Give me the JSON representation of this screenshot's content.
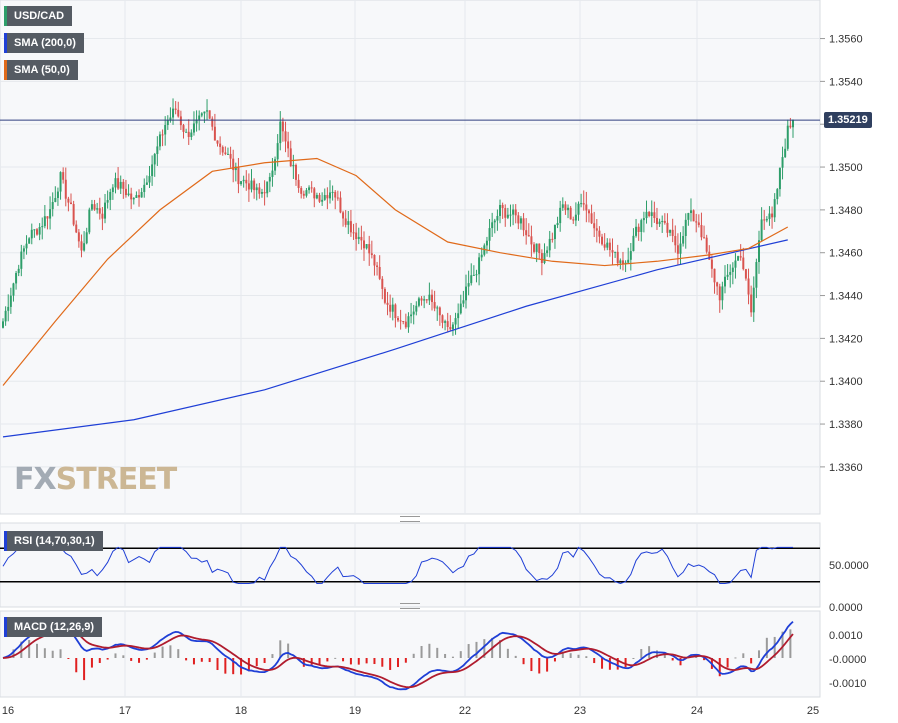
{
  "chart_data": [
    {
      "type": "candlestick",
      "name": "USD/CAD",
      "legend": [
        {
          "label": "USD/CAD",
          "color": "#2e9e6a"
        },
        {
          "label": "SMA (200,0)",
          "color": "#1f3fd6"
        },
        {
          "label": "SMA (50,0)",
          "color": "#e06a1a"
        }
      ],
      "y_ticks": [
        "1.3560",
        "1.3540",
        "1.3520",
        "1.3500",
        "1.3480",
        "1.3460",
        "1.3440",
        "1.3420",
        "1.3400",
        "1.3380",
        "1.3360"
      ],
      "ylim": [
        1.3338,
        1.3578
      ],
      "current_price": "1.35219",
      "x_ticks": [
        "16",
        "17",
        "18",
        "19",
        "22",
        "23",
        "24",
        "25"
      ],
      "close_path": [
        [
          0,
          1.3428
        ],
        [
          6,
          1.3455
        ],
        [
          10,
          1.3468
        ],
        [
          14,
          1.3472
        ],
        [
          18,
          1.348
        ],
        [
          22,
          1.3495
        ],
        [
          26,
          1.348
        ],
        [
          30,
          1.346
        ],
        [
          34,
          1.3483
        ],
        [
          38,
          1.3478
        ],
        [
          42,
          1.3493
        ],
        [
          46,
          1.349
        ],
        [
          50,
          1.3484
        ],
        [
          54,
          1.3492
        ],
        [
          58,
          1.3505
        ],
        [
          62,
          1.352
        ],
        [
          66,
          1.3527
        ],
        [
          70,
          1.3515
        ],
        [
          74,
          1.352
        ],
        [
          78,
          1.3525
        ],
        [
          82,
          1.3512
        ],
        [
          86,
          1.3505
        ],
        [
          90,
          1.3495
        ],
        [
          94,
          1.3492
        ],
        [
          98,
          1.3487
        ],
        [
          102,
          1.3493
        ],
        [
          106,
          1.352
        ],
        [
          110,
          1.3502
        ],
        [
          114,
          1.349
        ],
        [
          118,
          1.3488
        ],
        [
          122,
          1.3486
        ],
        [
          126,
          1.349
        ],
        [
          130,
          1.3478
        ],
        [
          134,
          1.347
        ],
        [
          138,
          1.3465
        ],
        [
          142,
          1.3455
        ],
        [
          146,
          1.3438
        ],
        [
          150,
          1.3432
        ],
        [
          154,
          1.3428
        ],
        [
          158,
          1.3435
        ],
        [
          162,
          1.344
        ],
        [
          166,
          1.3432
        ],
        [
          170,
          1.3423
        ],
        [
          174,
          1.343
        ],
        [
          178,
          1.3445
        ],
        [
          182,
          1.3455
        ],
        [
          186,
          1.347
        ],
        [
          190,
          1.348
        ],
        [
          194,
          1.3478
        ],
        [
          198,
          1.3475
        ],
        [
          202,
          1.3465
        ],
        [
          206,
          1.3458
        ],
        [
          210,
          1.3468
        ],
        [
          214,
          1.3482
        ],
        [
          218,
          1.3476
        ],
        [
          222,
          1.3485
        ],
        [
          226,
          1.3472
        ],
        [
          230,
          1.3465
        ],
        [
          234,
          1.3458
        ],
        [
          238,
          1.3456
        ],
        [
          242,
          1.347
        ],
        [
          246,
          1.348
        ],
        [
          250,
          1.3475
        ],
        [
          254,
          1.347
        ],
        [
          258,
          1.3462
        ],
        [
          262,
          1.3478
        ],
        [
          266,
          1.3474
        ],
        [
          270,
          1.3455
        ],
        [
          274,
          1.344
        ],
        [
          278,
          1.3452
        ],
        [
          282,
          1.346
        ],
        [
          286,
          1.3432
        ],
        [
          290,
          1.3478
        ],
        [
          294,
          1.3475
        ],
        [
          298,
          1.3505
        ],
        [
          300,
          1.3517
        ],
        [
          302,
          1.3522
        ]
      ],
      "sma200": [
        [
          0,
          1.3374
        ],
        [
          50,
          1.3382
        ],
        [
          100,
          1.3396
        ],
        [
          150,
          1.3415
        ],
        [
          200,
          1.3435
        ],
        [
          250,
          1.3452
        ],
        [
          300,
          1.3466
        ]
      ],
      "sma50": [
        [
          0,
          1.3398
        ],
        [
          20,
          1.3428
        ],
        [
          40,
          1.3457
        ],
        [
          60,
          1.348
        ],
        [
          80,
          1.3498
        ],
        [
          100,
          1.3502
        ],
        [
          120,
          1.3504
        ],
        [
          135,
          1.3496
        ],
        [
          150,
          1.348
        ],
        [
          170,
          1.3465
        ],
        [
          190,
          1.346
        ],
        [
          210,
          1.3456
        ],
        [
          230,
          1.3454
        ],
        [
          250,
          1.3456
        ],
        [
          270,
          1.3459
        ],
        [
          285,
          1.3462
        ],
        [
          300,
          1.3472
        ]
      ]
    },
    {
      "type": "line",
      "name": "RSI (14,70,30,1)",
      "y_ticks": [
        "50.0000",
        "0.0000"
      ],
      "levels": [
        70,
        30
      ]
    },
    {
      "type": "bar",
      "name": "MACD (12,26,9)",
      "y_ticks": [
        "0.0010",
        "-0.0000",
        "-0.0010"
      ]
    }
  ]
}
